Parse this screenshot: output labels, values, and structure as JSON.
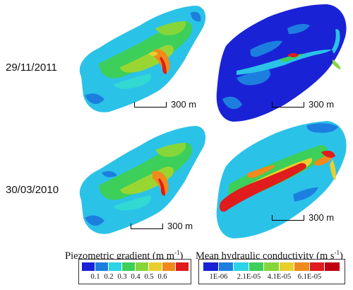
{
  "rows": [
    {
      "date": "29/11/2011"
    },
    {
      "date": "30/03/2010"
    }
  ],
  "scale_label": "300 m",
  "legend_gradient": {
    "title": "Piezometric gradient (m m",
    "title_sup": "-1",
    "title_end": ")",
    "ticks": [
      "0.1",
      "0.2",
      "0.3",
      "0.4",
      "0.5",
      "0.6"
    ],
    "colors": [
      "#1a22d6",
      "#1c7fe0",
      "#2bd4e6",
      "#3ccf5a",
      "#86d63a",
      "#e8d02c",
      "#f08a1c",
      "#e01c1c"
    ]
  },
  "legend_conductivity": {
    "title": "Mean hydraulic conductivity (m s",
    "title_sup": "-1",
    "title_end": ")",
    "ticks": [
      "1E-06",
      "2.1E-05",
      "4.1E-05",
      "6.1E-05"
    ],
    "colors": [
      "#1a22d6",
      "#1c7fe0",
      "#2bd4e6",
      "#3ccf5a",
      "#86d63a",
      "#e8d02c",
      "#f08a1c",
      "#e01c1c",
      "#c00010"
    ]
  },
  "colors": {
    "dark_blue": "#1a22d6",
    "mid_blue": "#1c7fe0",
    "light_blue": "#2bc2e8",
    "cyan": "#32d8d2",
    "green": "#3ccf5a",
    "yellow_green": "#9ad632",
    "yellow": "#e8d02c",
    "orange": "#f08a1c",
    "red": "#e01c1c"
  }
}
